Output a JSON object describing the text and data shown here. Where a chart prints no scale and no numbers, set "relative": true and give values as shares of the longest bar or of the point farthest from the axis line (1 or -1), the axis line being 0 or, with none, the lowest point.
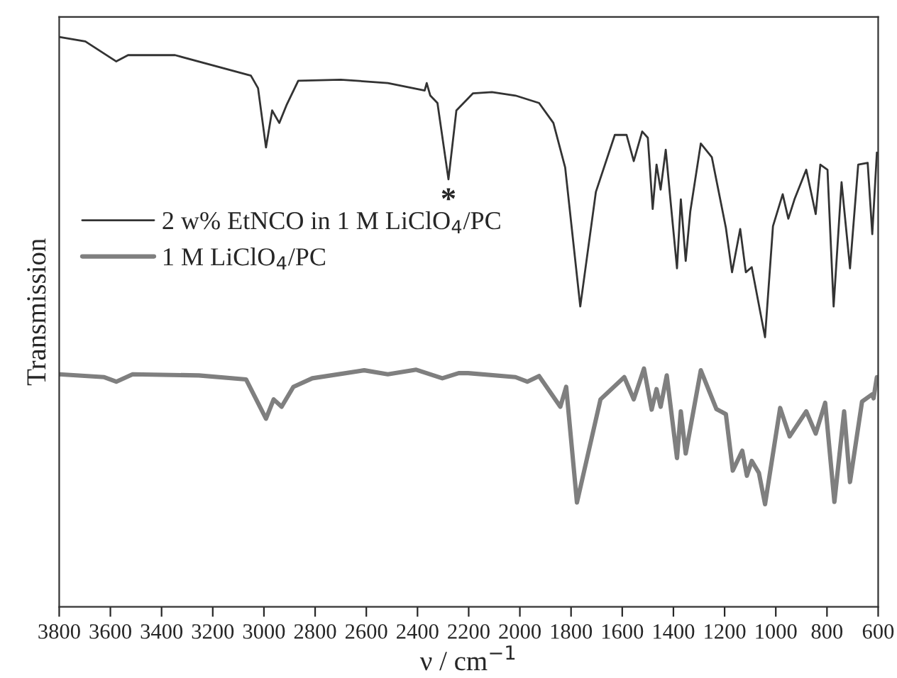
{
  "chart_data": {
    "type": "line",
    "relative": true,
    "xlabel": "ν / cm$^{−1}$",
    "ylabel": "Transmission",
    "xlim": [
      3800,
      600
    ],
    "xticks": [
      3800,
      3600,
      3400,
      3200,
      3000,
      2800,
      2600,
      2400,
      2200,
      2000,
      1800,
      1600,
      1400,
      1200,
      1000,
      800,
      600
    ],
    "legend": "left",
    "grid": false,
    "tick_labels": "x",
    "annotations": [
      {
        "text": "*",
        "x": 2279,
        "y": 0.75
      }
    ],
    "series": [
      {
        "name": "2 w% EtNCO in 1 M LiClO$_{4}$/PC",
        "color": "#333333",
        "x": [
          3800,
          3698,
          3577,
          3531,
          3347,
          3051,
          3023,
          2992,
          2968,
          2940,
          2912,
          2866,
          2700,
          2516,
          2372,
          2364,
          2350,
          2322,
          2279,
          2248,
          2183,
          2109,
          2017,
          1925,
          1869,
          1823,
          1764,
          1703,
          1629,
          1583,
          1555,
          1522,
          1500,
          1481,
          1466,
          1450,
          1430,
          1411,
          1386,
          1371,
          1352,
          1334,
          1293,
          1250,
          1195,
          1171,
          1139,
          1117,
          1094,
          1042,
          1011,
          973,
          951,
          927,
          881,
          844,
          826,
          798,
          774,
          743,
          710,
          678,
          641,
          623,
          605
        ],
        "values": [
          1.0,
          0.992,
          0.957,
          0.968,
          0.968,
          0.932,
          0.91,
          0.806,
          0.871,
          0.849,
          0.88,
          0.923,
          0.925,
          0.919,
          0.906,
          0.919,
          0.897,
          0.884,
          0.75,
          0.871,
          0.901,
          0.903,
          0.897,
          0.884,
          0.849,
          0.771,
          0.527,
          0.728,
          0.828,
          0.828,
          0.782,
          0.834,
          0.823,
          0.698,
          0.776,
          0.732,
          0.802,
          0.711,
          0.594,
          0.715,
          0.607,
          0.694,
          0.813,
          0.789,
          0.665,
          0.587,
          0.663,
          0.587,
          0.596,
          0.473,
          0.668,
          0.724,
          0.681,
          0.715,
          0.767,
          0.689,
          0.776,
          0.767,
          0.527,
          0.745,
          0.594,
          0.776,
          0.779,
          0.654,
          0.797
        ]
      },
      {
        "name": "1 M LiClO$_{4}$/PC",
        "color": "#7f7f7f",
        "x": [
          3800,
          3624,
          3577,
          3513,
          3254,
          3070,
          2992,
          2962,
          2931,
          2885,
          2811,
          2608,
          2516,
          2405,
          2303,
          2239,
          2202,
          2017,
          1971,
          1925,
          1842,
          1819,
          1777,
          1685,
          1592,
          1555,
          1515,
          1485,
          1466,
          1450,
          1426,
          1386,
          1371,
          1352,
          1293,
          1232,
          1195,
          1168,
          1131,
          1113,
          1094,
          1066,
          1042,
          983,
          946,
          881,
          844,
          807,
          771,
          733,
          710,
          663,
          623,
          618,
          605
        ],
        "values": [
          0.408,
          0.403,
          0.395,
          0.408,
          0.406,
          0.399,
          0.33,
          0.364,
          0.351,
          0.386,
          0.401,
          0.415,
          0.408,
          0.416,
          0.401,
          0.41,
          0.41,
          0.403,
          0.395,
          0.405,
          0.351,
          0.386,
          0.183,
          0.364,
          0.403,
          0.364,
          0.418,
          0.346,
          0.382,
          0.351,
          0.406,
          0.261,
          0.343,
          0.269,
          0.415,
          0.347,
          0.338,
          0.239,
          0.274,
          0.23,
          0.256,
          0.235,
          0.18,
          0.349,
          0.299,
          0.343,
          0.304,
          0.358,
          0.184,
          0.343,
          0.219,
          0.36,
          0.373,
          0.366,
          0.403
        ]
      }
    ]
  }
}
